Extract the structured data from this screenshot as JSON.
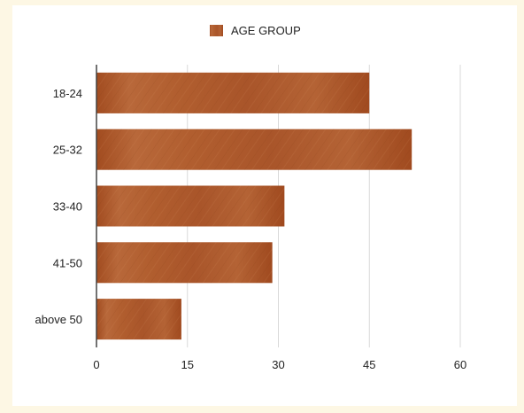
{
  "chart_data": {
    "type": "bar",
    "orientation": "horizontal",
    "categories": [
      "18-24",
      "25-32",
      "33-40",
      "41-50",
      "above 50"
    ],
    "series": [
      {
        "name": "AGE GROUP",
        "values": [
          45,
          52,
          31,
          29,
          14
        ]
      }
    ],
    "xlim": [
      0,
      60
    ],
    "x_ticks": [
      "0",
      "15",
      "30",
      "45",
      "60"
    ],
    "grid": "vertical",
    "legend": "top-center",
    "colors": {
      "bar": "#a44e22",
      "bar_light": "#c06f3e",
      "grid": "#d9d9d9",
      "axis": "#444444"
    }
  }
}
